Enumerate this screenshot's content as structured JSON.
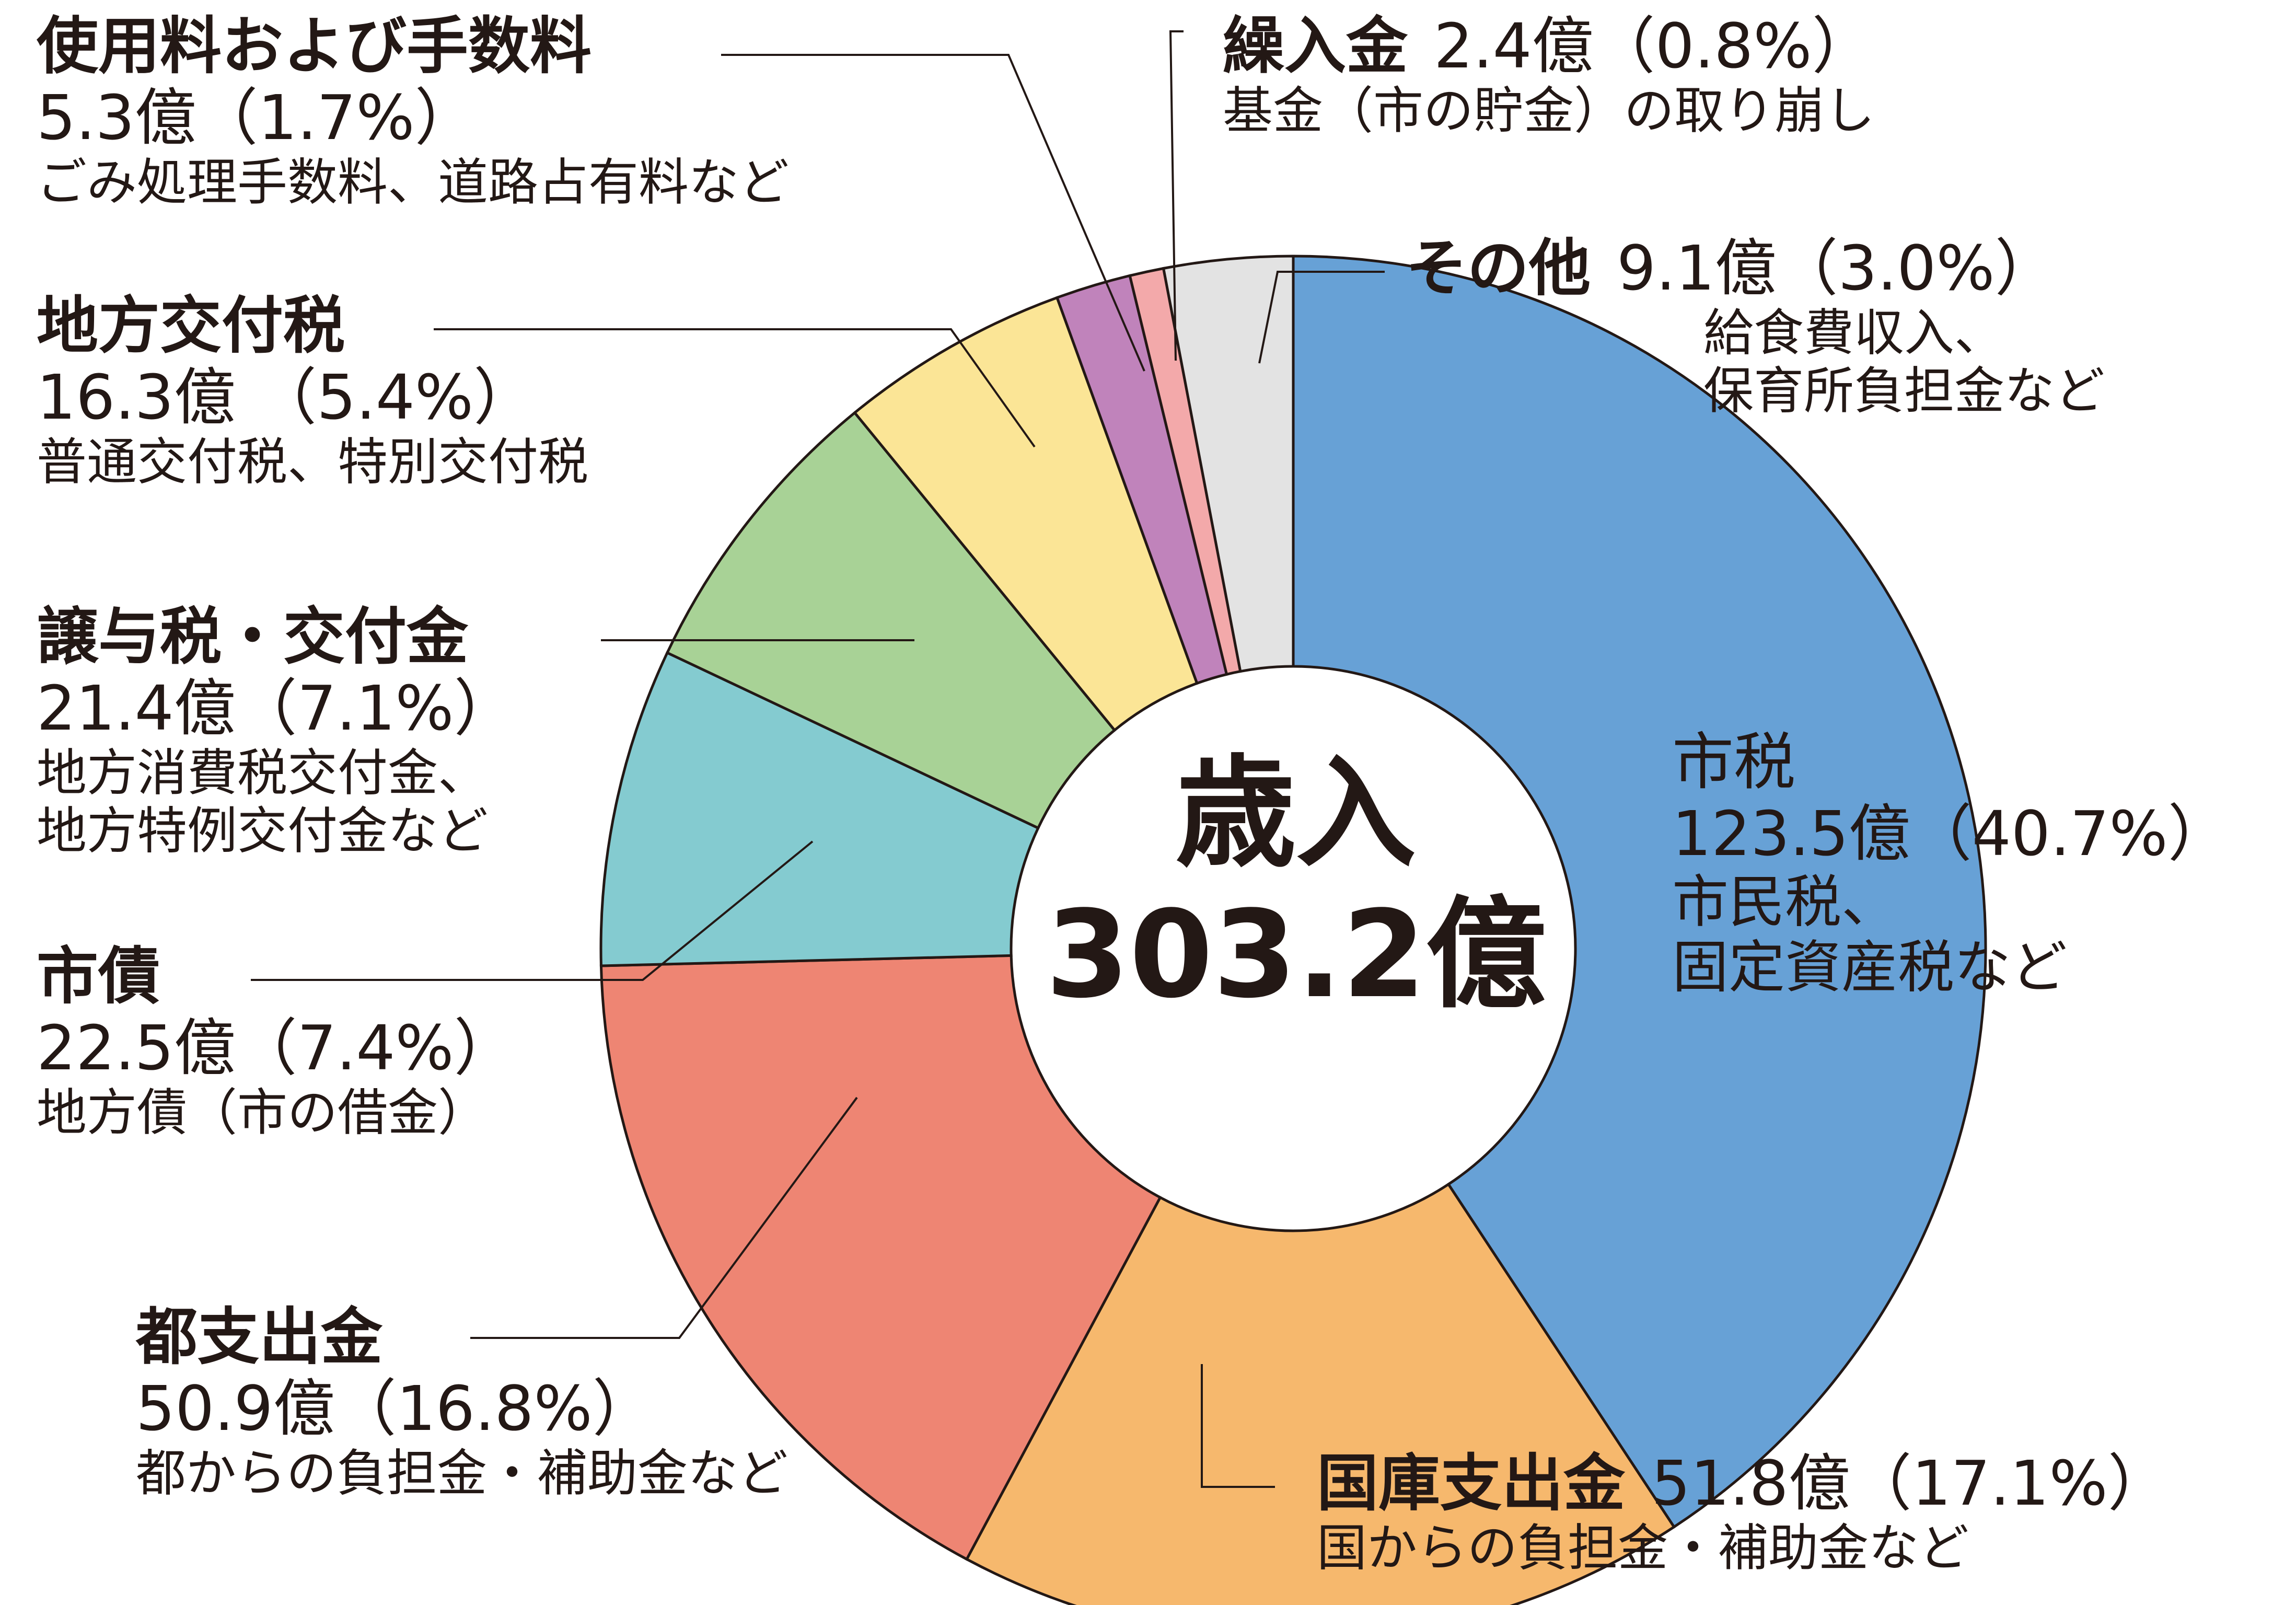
{
  "chart_data": {
    "type": "pie",
    "donut": true,
    "center_label": {
      "line1": "歳入",
      "line2": "303.2億"
    },
    "unit": "億",
    "total": 303.2,
    "slices": [
      {
        "key": "shizei",
        "title": "市税",
        "amount": "123.5億（40.7%）",
        "note": "市民税、固定資産税など",
        "value": 123.5,
        "percent": 40.7,
        "color": "#67a1d6"
      },
      {
        "key": "kokko",
        "title": "国庫支出金",
        "amount": "51.8億（17.1%）",
        "note": "国からの負担金・補助金など",
        "value": 51.8,
        "percent": 17.1,
        "color": "#f6b86d"
      },
      {
        "key": "toshishutsu",
        "title": "都支出金",
        "amount": "50.9億（16.8%）",
        "note": "都からの負担金・補助金など",
        "value": 50.9,
        "percent": 16.8,
        "color": "#ee8573"
      },
      {
        "key": "shisai",
        "title": "市債",
        "amount": "22.5億（7.4%）",
        "note": "地方債（市の借金）",
        "value": 22.5,
        "percent": 7.4,
        "color": "#84cbd0"
      },
      {
        "key": "jouyo",
        "title": "譲与税・交付金",
        "amount": "21.4億（7.1%）",
        "note": "地方消費税交付金、地方特例交付金など",
        "note_lines": [
          "地方消費税交付金、",
          "地方特例交付金など"
        ],
        "value": 21.4,
        "percent": 7.1,
        "color": "#a8d296"
      },
      {
        "key": "koufuzei",
        "title": "地方交付税",
        "amount": "16.3億 （5.4%）",
        "note": "普通交付税、特別交付税",
        "value": 16.3,
        "percent": 5.4,
        "color": "#fbe596"
      },
      {
        "key": "shiyouryou",
        "title": "使用料および手数料",
        "amount": "5.3億（1.7%）",
        "note": "ごみ処理手数料、道路占有料など",
        "value": 5.3,
        "percent": 1.7,
        "color": "#c083bb"
      },
      {
        "key": "kurinyu",
        "title": "繰入金",
        "amount": "2.4億（0.8%）",
        "note": "基金（市の貯金）の取り崩し",
        "value": 2.4,
        "percent": 0.8,
        "color": "#f3a9aa"
      },
      {
        "key": "sonota",
        "title": "その他",
        "amount": "9.1億（3.0%）",
        "note": "給食費収入、保育所負担金など",
        "note_lines": [
          "給食費収入、",
          "保育所負担金など"
        ],
        "value": 9.1,
        "percent": 3.0,
        "color": "#e3e3e3"
      }
    ],
    "shizei_label": {
      "title": "市税",
      "amount": "123.5億（40.7%）",
      "note_lines": [
        "市民税、",
        "固定資産税など"
      ]
    },
    "legend": "none"
  }
}
